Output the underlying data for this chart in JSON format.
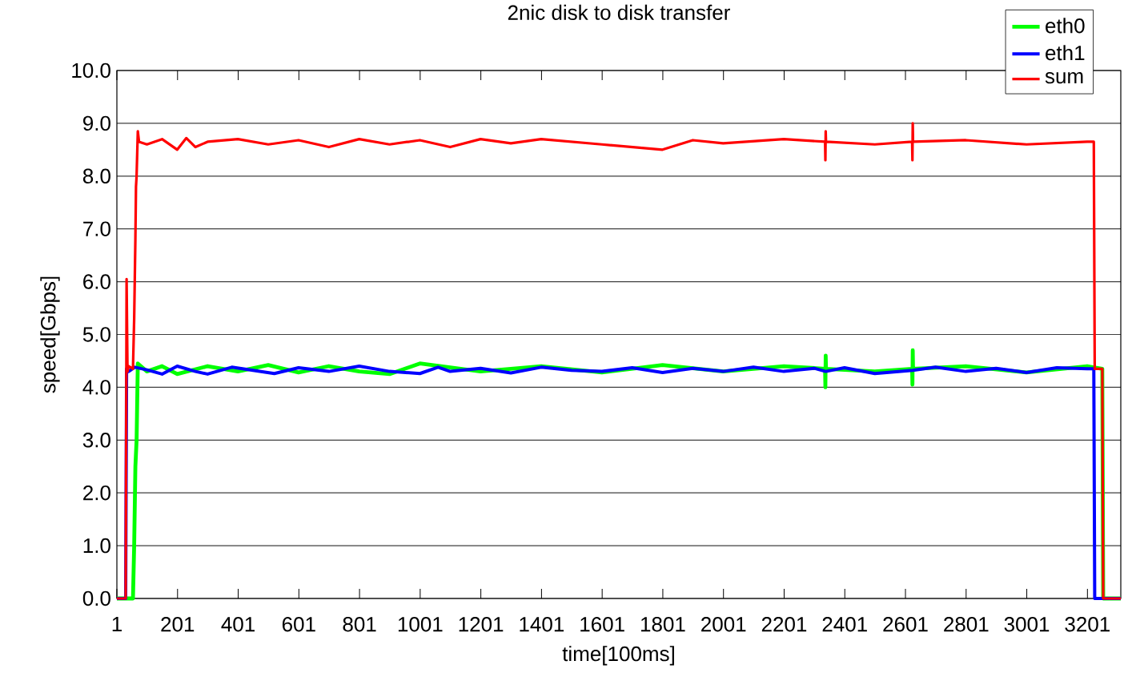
{
  "chart_data": {
    "type": "line",
    "title": "2nic disk to disk transfer",
    "xlabel": "time[100ms]",
    "ylabel": "speed[Gbps]",
    "xlim": [
      1,
      3311
    ],
    "ylim": [
      0,
      10
    ],
    "xticks": [
      1,
      201,
      401,
      601,
      801,
      1001,
      1201,
      1401,
      1601,
      1801,
      2001,
      2201,
      2401,
      2601,
      2801,
      3001,
      3201
    ],
    "yticks": [
      {
        "value": 0,
        "label": "0.0"
      },
      {
        "value": 1,
        "label": "1.0"
      },
      {
        "value": 2,
        "label": "2.0"
      },
      {
        "value": 3,
        "label": "3.0"
      },
      {
        "value": 4,
        "label": "4.0"
      },
      {
        "value": 5,
        "label": "5.0"
      },
      {
        "value": 6,
        "label": "6.0"
      },
      {
        "value": 7,
        "label": "7.0"
      },
      {
        "value": 8,
        "label": "8.0"
      },
      {
        "value": 9,
        "label": "9.0"
      },
      {
        "value": 10,
        "label": "10.0"
      }
    ],
    "grid": "y",
    "legend": "top right",
    "marker": "none",
    "line_style": "solid",
    "series": [
      {
        "name": "eth0",
        "color": "#00ff00",
        "x": [
          1,
          54,
          58,
          62,
          66,
          70,
          100,
          150,
          200,
          300,
          400,
          500,
          600,
          700,
          800,
          900,
          1000,
          1200,
          1400,
          1600,
          1800,
          2000,
          2200,
          2336,
          2337,
          2338,
          2339,
          2500,
          2623,
          2624,
          2625,
          2626,
          2800,
          3000,
          3200,
          3250,
          3253,
          3311
        ],
        "values": [
          0,
          0,
          1.0,
          2.5,
          3.0,
          4.45,
          4.3,
          4.4,
          4.25,
          4.4,
          4.3,
          4.42,
          4.28,
          4.4,
          4.3,
          4.25,
          4.45,
          4.3,
          4.4,
          4.28,
          4.42,
          4.3,
          4.4,
          4.35,
          4.0,
          4.6,
          4.35,
          4.3,
          4.35,
          4.05,
          4.7,
          4.35,
          4.4,
          4.28,
          4.4,
          4.35,
          0,
          0
        ]
      },
      {
        "name": "eth1",
        "color": "#0000ff",
        "x": [
          1,
          30,
          33,
          40,
          60,
          100,
          150,
          200,
          260,
          300,
          380,
          450,
          520,
          600,
          700,
          800,
          900,
          1000,
          1060,
          1100,
          1200,
          1300,
          1400,
          1500,
          1600,
          1700,
          1800,
          1900,
          2000,
          2100,
          2200,
          2300,
          2338,
          2400,
          2500,
          2625,
          2700,
          2800,
          2900,
          3000,
          3100,
          3200,
          3222,
          3225,
          3311
        ],
        "values": [
          0,
          0,
          4.35,
          4.3,
          4.38,
          4.33,
          4.25,
          4.4,
          4.3,
          4.25,
          4.38,
          4.32,
          4.26,
          4.37,
          4.3,
          4.4,
          4.3,
          4.26,
          4.38,
          4.3,
          4.36,
          4.27,
          4.38,
          4.32,
          4.3,
          4.37,
          4.28,
          4.36,
          4.3,
          4.38,
          4.3,
          4.36,
          4.3,
          4.37,
          4.26,
          4.32,
          4.38,
          4.3,
          4.36,
          4.28,
          4.37,
          4.35,
          4.35,
          0,
          0
        ]
      },
      {
        "name": "sum",
        "color": "#ff0000",
        "x": [
          1,
          30,
          33,
          36,
          40,
          54,
          58,
          62,
          64,
          66,
          70,
          74,
          100,
          150,
          200,
          230,
          260,
          300,
          400,
          500,
          600,
          700,
          800,
          900,
          1000,
          1100,
          1200,
          1300,
          1400,
          1600,
          1800,
          1900,
          2000,
          2200,
          2336,
          2337,
          2338,
          2339,
          2500,
          2623,
          2624,
          2625,
          2626,
          2800,
          3000,
          3200,
          3222,
          3225,
          3250,
          3253,
          3311
        ],
        "values": [
          0,
          0,
          6.05,
          4.3,
          4.4,
          4.35,
          5.3,
          6.8,
          7.8,
          8.0,
          8.85,
          8.65,
          8.6,
          8.7,
          8.5,
          8.72,
          8.55,
          8.65,
          8.7,
          8.6,
          8.68,
          8.55,
          8.7,
          8.6,
          8.68,
          8.55,
          8.7,
          8.62,
          8.7,
          8.6,
          8.5,
          8.68,
          8.62,
          8.7,
          8.65,
          8.3,
          8.85,
          8.65,
          8.6,
          8.65,
          8.3,
          9.0,
          8.65,
          8.68,
          8.6,
          8.65,
          8.65,
          4.35,
          4.35,
          0,
          0
        ]
      }
    ]
  }
}
